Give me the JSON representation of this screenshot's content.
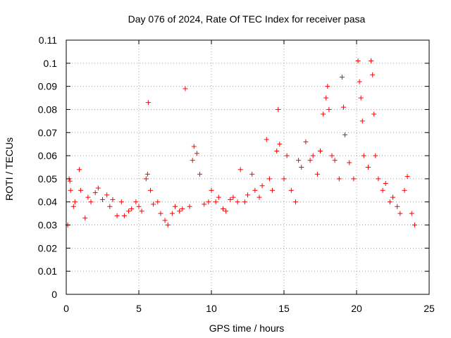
{
  "chart_data": {
    "type": "scatter",
    "title": "Day 076 of 2024, Rate Of TEC Index for receiver pasa",
    "xlabel": "GPS time / hours",
    "ylabel": "ROTI / TECUs",
    "xlim": [
      0,
      25
    ],
    "ylim": [
      0,
      0.11
    ],
    "grid": true,
    "marker": "plus",
    "x_ticks": [
      "0",
      "5",
      "10",
      "15",
      "20",
      "25"
    ],
    "y_ticks": [
      "0",
      "0.01",
      "0.02",
      "0.03",
      "0.04",
      "0.05",
      "0.06",
      "0.07",
      "0.08",
      "0.09",
      "0.1",
      "0.11"
    ],
    "x_tick_values": [
      0,
      5,
      10,
      15,
      20,
      25
    ],
    "y_tick_values": [
      0,
      0.01,
      0.02,
      0.03,
      0.04,
      0.05,
      0.06,
      0.07,
      0.08,
      0.09,
      0.1,
      0.11
    ],
    "series": [
      {
        "color": "#ff0000",
        "points": [
          [
            0.1,
            0.03
          ],
          [
            0.2,
            0.05
          ],
          [
            0.25,
            0.049
          ],
          [
            0.3,
            0.045
          ],
          [
            0.5,
            0.038
          ],
          [
            0.6,
            0.04
          ],
          [
            0.9,
            0.054
          ],
          [
            1.0,
            0.045
          ],
          [
            1.3,
            0.033
          ],
          [
            1.5,
            0.042
          ],
          [
            1.7,
            0.04
          ],
          [
            2.0,
            0.044
          ],
          [
            2.2,
            0.046
          ],
          [
            2.5,
            0.041
          ],
          [
            2.8,
            0.043
          ],
          [
            3.0,
            0.038
          ],
          [
            3.2,
            0.041
          ],
          [
            3.5,
            0.034
          ],
          [
            3.8,
            0.04
          ],
          [
            4.0,
            0.034
          ],
          [
            4.3,
            0.036
          ],
          [
            4.5,
            0.037
          ],
          [
            4.8,
            0.04
          ],
          [
            5.0,
            0.038
          ],
          [
            5.2,
            0.036
          ],
          [
            5.5,
            0.05
          ],
          [
            5.6,
            0.052
          ],
          [
            5.65,
            0.083
          ],
          [
            5.8,
            0.045
          ],
          [
            6.0,
            0.039
          ],
          [
            6.3,
            0.04
          ],
          [
            6.5,
            0.035
          ],
          [
            6.8,
            0.032
          ],
          [
            7.0,
            0.03
          ],
          [
            7.3,
            0.035
          ],
          [
            7.5,
            0.038
          ],
          [
            7.8,
            0.036
          ],
          [
            8.0,
            0.037
          ],
          [
            8.2,
            0.089
          ],
          [
            8.5,
            0.038
          ],
          [
            8.7,
            0.058
          ],
          [
            8.8,
            0.064
          ],
          [
            9.0,
            0.061
          ],
          [
            9.2,
            0.052
          ],
          [
            9.5,
            0.039
          ],
          [
            9.8,
            0.04
          ],
          [
            10.0,
            0.045
          ],
          [
            10.3,
            0.04
          ],
          [
            10.5,
            0.042
          ],
          [
            10.8,
            0.037
          ],
          [
            11.0,
            0.036
          ],
          [
            11.3,
            0.041
          ],
          [
            11.5,
            0.042
          ],
          [
            11.8,
            0.04
          ],
          [
            12.0,
            0.054
          ],
          [
            12.3,
            0.04
          ],
          [
            12.5,
            0.043
          ],
          [
            12.8,
            0.052
          ],
          [
            13.0,
            0.045
          ],
          [
            13.3,
            0.042
          ],
          [
            13.5,
            0.047
          ],
          [
            13.8,
            0.067
          ],
          [
            14.0,
            0.05
          ],
          [
            14.2,
            0.045
          ],
          [
            14.5,
            0.062
          ],
          [
            14.6,
            0.08
          ],
          [
            14.7,
            0.065
          ],
          [
            15.0,
            0.05
          ],
          [
            15.2,
            0.06
          ],
          [
            15.5,
            0.045
          ],
          [
            15.8,
            0.04
          ],
          [
            16.0,
            0.058
          ],
          [
            16.2,
            0.055
          ],
          [
            16.5,
            0.066
          ],
          [
            16.8,
            0.058
          ],
          [
            17.0,
            0.06
          ],
          [
            17.3,
            0.052
          ],
          [
            17.5,
            0.062
          ],
          [
            17.7,
            0.078
          ],
          [
            17.9,
            0.085
          ],
          [
            18.0,
            0.09
          ],
          [
            18.1,
            0.08
          ],
          [
            18.3,
            0.06
          ],
          [
            18.5,
            0.058
          ],
          [
            18.8,
            0.05
          ],
          [
            19.0,
            0.094
          ],
          [
            19.1,
            0.081
          ],
          [
            19.2,
            0.069
          ],
          [
            19.5,
            0.057
          ],
          [
            19.8,
            0.05
          ],
          [
            20.1,
            0.101
          ],
          [
            20.2,
            0.092
          ],
          [
            20.3,
            0.085
          ],
          [
            20.4,
            0.075
          ],
          [
            20.5,
            0.06
          ],
          [
            20.8,
            0.055
          ],
          [
            21.0,
            0.101
          ],
          [
            21.1,
            0.095
          ],
          [
            21.2,
            0.078
          ],
          [
            21.3,
            0.06
          ],
          [
            21.5,
            0.05
          ],
          [
            21.8,
            0.045
          ],
          [
            22.0,
            0.048
          ],
          [
            22.3,
            0.04
          ],
          [
            22.5,
            0.042
          ],
          [
            22.8,
            0.038
          ],
          [
            23.0,
            0.035
          ],
          [
            23.3,
            0.045
          ],
          [
            23.5,
            0.051
          ],
          [
            23.8,
            0.035
          ],
          [
            24.0,
            0.03
          ]
        ]
      }
    ]
  }
}
